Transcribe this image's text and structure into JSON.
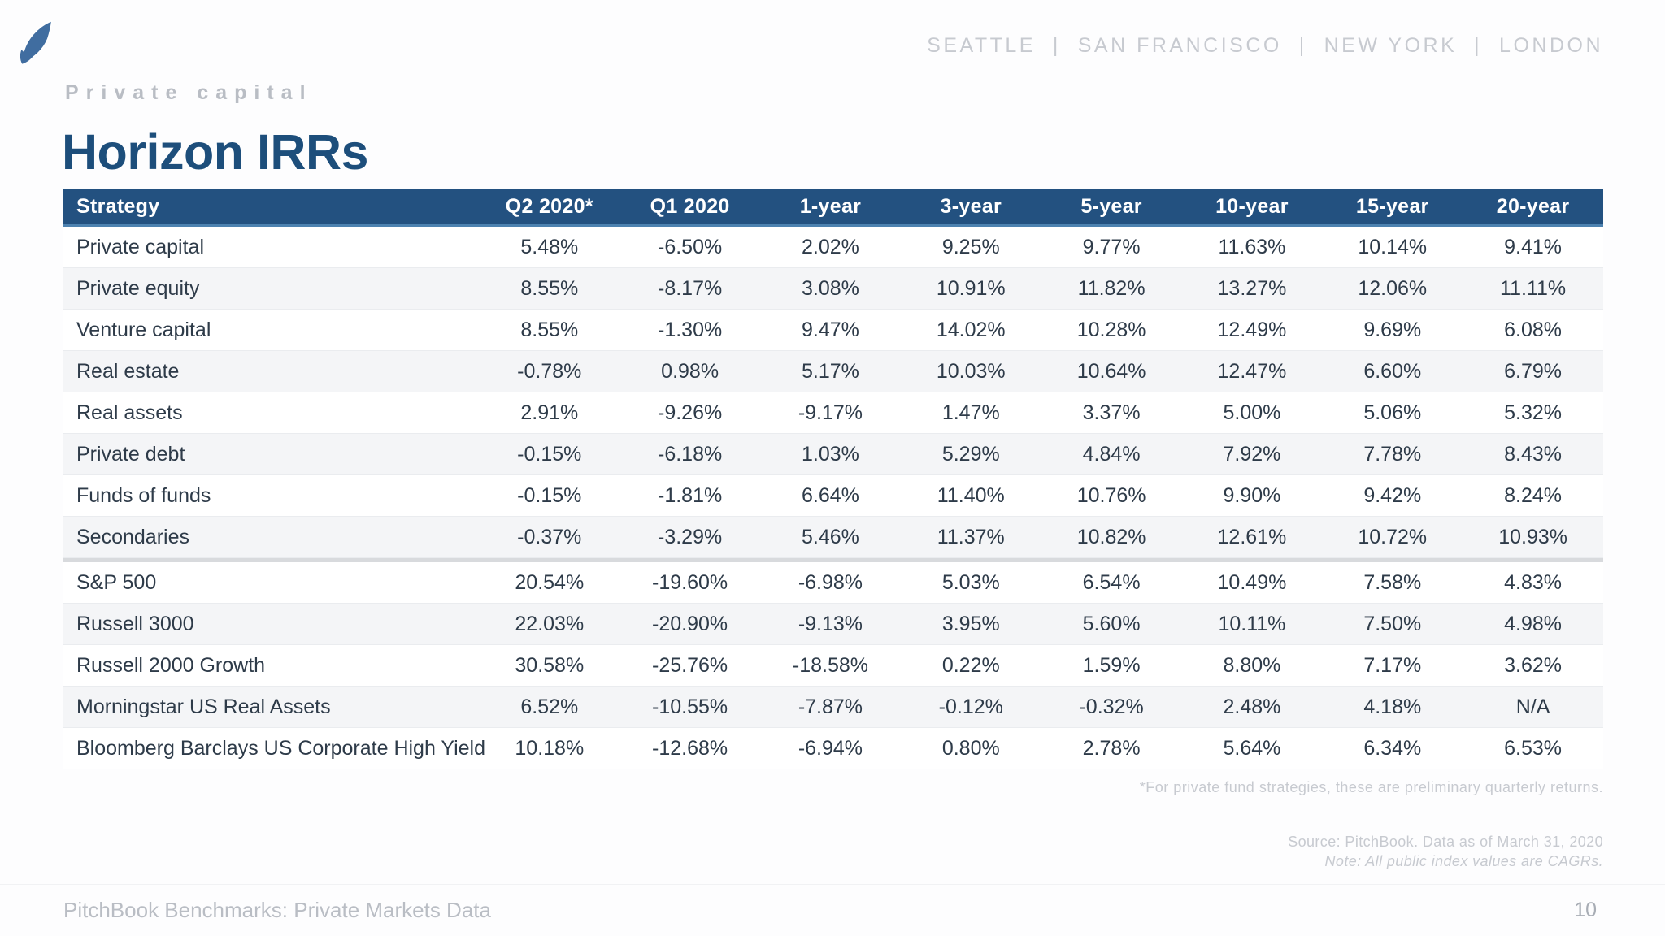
{
  "header": {
    "cities": [
      "SEATTLE",
      "SAN FRANCISCO",
      "NEW YORK",
      "LONDON"
    ],
    "cities_separator": "|",
    "eyebrow": "Private capital",
    "title": "Horizon IRRs",
    "logo_icon": "pitchbook-logo"
  },
  "table": {
    "columns": [
      "Strategy",
      "Q2 2020*",
      "Q1 2020",
      "1-year",
      "3-year",
      "5-year",
      "10-year",
      "15-year",
      "20-year"
    ],
    "groups": [
      {
        "name": "private-fund-strategies",
        "rows": [
          {
            "strategy": "Private capital",
            "values": [
              "5.48%",
              "-6.50%",
              "2.02%",
              "9.25%",
              "9.77%",
              "11.63%",
              "10.14%",
              "9.41%"
            ]
          },
          {
            "strategy": "Private equity",
            "values": [
              "8.55%",
              "-8.17%",
              "3.08%",
              "10.91%",
              "11.82%",
              "13.27%",
              "12.06%",
              "11.11%"
            ]
          },
          {
            "strategy": "Venture capital",
            "values": [
              "8.55%",
              "-1.30%",
              "9.47%",
              "14.02%",
              "10.28%",
              "12.49%",
              "9.69%",
              "6.08%"
            ]
          },
          {
            "strategy": "Real estate",
            "values": [
              "-0.78%",
              "0.98%",
              "5.17%",
              "10.03%",
              "10.64%",
              "12.47%",
              "6.60%",
              "6.79%"
            ]
          },
          {
            "strategy": "Real assets",
            "values": [
              "2.91%",
              "-9.26%",
              "-9.17%",
              "1.47%",
              "3.37%",
              "5.00%",
              "5.06%",
              "5.32%"
            ]
          },
          {
            "strategy": "Private debt",
            "values": [
              "-0.15%",
              "-6.18%",
              "1.03%",
              "5.29%",
              "4.84%",
              "7.92%",
              "7.78%",
              "8.43%"
            ]
          },
          {
            "strategy": "Funds of funds",
            "values": [
              "-0.15%",
              "-1.81%",
              "6.64%",
              "11.40%",
              "10.76%",
              "9.90%",
              "9.42%",
              "8.24%"
            ]
          },
          {
            "strategy": "Secondaries",
            "values": [
              "-0.37%",
              "-3.29%",
              "5.46%",
              "11.37%",
              "10.82%",
              "12.61%",
              "10.72%",
              "10.93%"
            ]
          }
        ]
      },
      {
        "name": "public-indices",
        "rows": [
          {
            "strategy": "S&P 500",
            "values": [
              "20.54%",
              "-19.60%",
              "-6.98%",
              "5.03%",
              "6.54%",
              "10.49%",
              "7.58%",
              "4.83%"
            ]
          },
          {
            "strategy": "Russell 3000",
            "values": [
              "22.03%",
              "-20.90%",
              "-9.13%",
              "3.95%",
              "5.60%",
              "10.11%",
              "7.50%",
              "4.98%"
            ]
          },
          {
            "strategy": "Russell 2000 Growth",
            "values": [
              "30.58%",
              "-25.76%",
              "-18.58%",
              "0.22%",
              "1.59%",
              "8.80%",
              "7.17%",
              "3.62%"
            ]
          },
          {
            "strategy": "Morningstar US Real Assets",
            "values": [
              "6.52%",
              "-10.55%",
              "-7.87%",
              "-0.12%",
              "-0.32%",
              "2.48%",
              "4.18%",
              "N/A"
            ]
          },
          {
            "strategy": "Bloomberg Barclays US Corporate High Yield",
            "values": [
              "10.18%",
              "-12.68%",
              "-6.94%",
              "0.80%",
              "2.78%",
              "5.64%",
              "6.34%",
              "6.53%"
            ]
          }
        ]
      }
    ],
    "footnote": "*For private fund strategies, these are preliminary quarterly returns."
  },
  "source": {
    "line1": "Source: PitchBook. Data as of March 31, 2020",
    "line2": "Note: All public index values are CAGRs."
  },
  "footer": {
    "left_text": "PitchBook Benchmarks: Private Markets Data",
    "page_number": "10"
  },
  "colors": {
    "header_bg": "#235180",
    "header_underline": "#4d82b0",
    "title_blue": "#1d4e7b",
    "logo_blue": "#406da0",
    "stripe": "#f4f5f7",
    "group_divider": "#d8dadd",
    "text_dark": "#2e3b49",
    "gray_light": "#c7cad0",
    "gray_mid": "#b9bdc4"
  }
}
